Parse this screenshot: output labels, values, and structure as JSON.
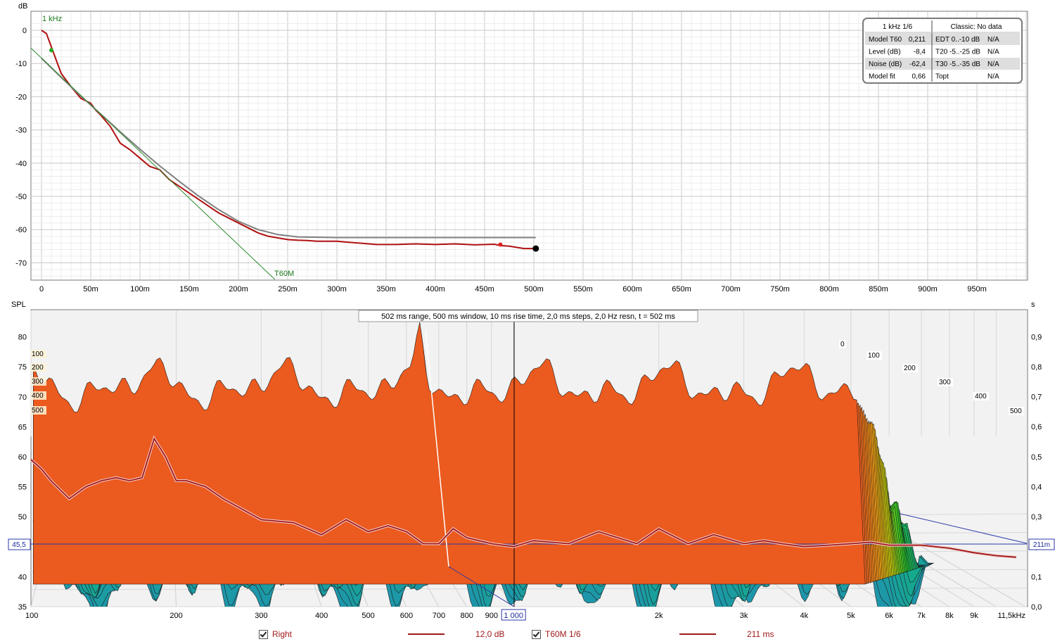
{
  "chart_data": [
    {
      "type": "line",
      "ylabel": "dB",
      "band_label": "1 kHz",
      "fit_label": "T60M",
      "x_unit": "ms",
      "xlim": [
        0,
        1000
      ],
      "ylim": [
        -75,
        3
      ],
      "x_ticks": [
        "0",
        "50m",
        "100m",
        "150m",
        "200m",
        "250m",
        "300m",
        "350m",
        "400m",
        "450m",
        "500m",
        "550m",
        "600m",
        "650m",
        "700m",
        "750m",
        "800m",
        "850m",
        "900m",
        "950m"
      ],
      "y_ticks": [
        "0",
        "-10",
        "-20",
        "-30",
        "-40",
        "-50",
        "-60",
        "-70"
      ],
      "series": [
        {
          "kind": "measured",
          "color": "#b01010",
          "x": [
            0,
            5,
            10,
            15,
            20,
            30,
            40,
            50,
            55,
            60,
            70,
            80,
            90,
            100,
            110,
            120,
            130,
            140,
            150,
            160,
            170,
            180,
            190,
            200,
            210,
            220,
            230,
            240,
            250,
            260,
            270,
            280,
            300,
            320,
            340,
            360,
            380,
            400,
            420,
            440,
            460,
            466,
            475,
            490,
            502
          ],
          "y": [
            0,
            -1,
            -5,
            -9,
            -13,
            -17,
            -20.5,
            -22,
            -24,
            -25.5,
            -29,
            -34,
            -36,
            -38.5,
            -41,
            -42,
            -45,
            -47,
            -49,
            -51,
            -53,
            -55,
            -56.5,
            -58,
            -59.5,
            -61,
            -62,
            -62.5,
            -63,
            -63.2,
            -63.3,
            -63.5,
            -63.5,
            -64,
            -64.5,
            -64.5,
            -64.3,
            -64.5,
            -64.3,
            -64.6,
            -64.4,
            -64.8,
            -65,
            -65.7,
            -65.7
          ]
        },
        {
          "kind": "model",
          "color": "#808080",
          "x": [
            0,
            20,
            40,
            60,
            80,
            100,
            120,
            140,
            160,
            180,
            200,
            220,
            240,
            260,
            300,
            400,
            502
          ],
          "y": [
            -8.4,
            -14.2,
            -19.8,
            -25.2,
            -30.6,
            -35.8,
            -40.8,
            -45.5,
            -50,
            -54,
            -57.5,
            -60,
            -61.5,
            -62.2,
            -62.4,
            -62.4,
            -62.4
          ]
        },
        {
          "kind": "decay_line",
          "color": "#2a8a2a",
          "x": [
            -12,
            237
          ],
          "y": [
            -5,
            -75
          ]
        }
      ],
      "markers": [
        {
          "x": 10,
          "y": -6,
          "color": "#22aa22"
        },
        {
          "x": 466,
          "y": -64.5,
          "color": "#e02020"
        },
        {
          "x": 502,
          "y": -65.7,
          "color": "#000000"
        }
      ],
      "info_table": {
        "header": [
          "1 kHz 1/6",
          "Classic: No data"
        ],
        "rows": [
          [
            "Model T60",
            "0,211",
            "EDT  0..-10 dB",
            "N/A"
          ],
          [
            "Level (dB)",
            "-8,4",
            "T20 -5..-25 dB",
            "N/A"
          ],
          [
            "Noise (dB)",
            "-62,4",
            "T30 -5..-35 dB",
            "N/A"
          ],
          [
            "Model fit",
            "0,66",
            "Topt",
            "N/A"
          ]
        ]
      }
    },
    {
      "type": "waterfall",
      "ylabel": "SPL",
      "right_label": "s",
      "title": "502 ms range, 500 ms window, 10 ms rise time, 2,0 ms steps,  2,0 Hz resn, t = 502 ms",
      "xscale": "log",
      "xlim": [
        100,
        11500
      ],
      "ylim": [
        35,
        82
      ],
      "x_ticks": [
        {
          "f": 100,
          "label": "100"
        },
        {
          "f": 200,
          "label": "200"
        },
        {
          "f": 300,
          "label": "300"
        },
        {
          "f": 400,
          "label": "400"
        },
        {
          "f": 500,
          "label": "500"
        },
        {
          "f": 600,
          "label": "600"
        },
        {
          "f": 700,
          "label": "700"
        },
        {
          "f": 800,
          "label": "800"
        },
        {
          "f": 900,
          "label": "900"
        },
        {
          "f": 1000,
          "label": "1 000"
        },
        {
          "f": 2000,
          "label": "2k"
        },
        {
          "f": 3000,
          "label": "3k"
        },
        {
          "f": 4000,
          "label": "4k"
        },
        {
          "f": 5000,
          "label": "5k"
        },
        {
          "f": 6000,
          "label": "6k"
        },
        {
          "f": 7000,
          "label": "7k"
        },
        {
          "f": 8000,
          "label": "8k"
        },
        {
          "f": 9000,
          "label": "9k"
        },
        {
          "f": 11500,
          "label": "11,5kHz"
        }
      ],
      "y_ticks": [
        "80",
        "75",
        "70",
        "65",
        "60",
        "55",
        "50",
        "40",
        "35"
      ],
      "right_ticks": [
        "0,9",
        "0,8",
        "0,7",
        "0,6",
        "0,5",
        "0,4",
        "0,3",
        "0,2",
        "0,1",
        "0,0"
      ],
      "time_tags_left": [
        "100",
        "200",
        "300",
        "400",
        "500"
      ],
      "time_tags_right": [
        "0",
        "100",
        "200",
        "300",
        "400",
        "500"
      ],
      "cursor_spl": "45,5",
      "cursor_time": "211m",
      "t60_series": {
        "name": "T60M 1/6",
        "freq": [
          100,
          105,
          110,
          120,
          130,
          140,
          150,
          160,
          170,
          180,
          190,
          200,
          210,
          230,
          250,
          300,
          350,
          400,
          450,
          500,
          550,
          600,
          650,
          700,
          750,
          800,
          900,
          1000,
          1100,
          1300,
          1500,
          1800,
          2000,
          2300,
          2600,
          3000,
          3300,
          3600,
          4000,
          4500,
          5000,
          5500,
          6000,
          7000,
          8000,
          9000,
          10000,
          11000
        ],
        "t60_s": [
          0.49,
          0.46,
          0.42,
          0.36,
          0.4,
          0.42,
          0.43,
          0.42,
          0.43,
          0.56,
          0.5,
          0.42,
          0.42,
          0.4,
          0.36,
          0.29,
          0.28,
          0.24,
          0.29,
          0.25,
          0.27,
          0.25,
          0.21,
          0.21,
          0.26,
          0.23,
          0.21,
          0.2,
          0.22,
          0.21,
          0.25,
          0.21,
          0.26,
          0.21,
          0.24,
          0.21,
          0.22,
          0.21,
          0.2,
          0.205,
          0.21,
          0.215,
          0.205,
          0.205,
          0.195,
          0.18,
          0.17,
          0.165
        ]
      }
    }
  ],
  "legend": {
    "item1": {
      "label": "Right",
      "value": "12,0 dB"
    },
    "item2": {
      "label": "T60M 1/6",
      "value": "211 ms"
    }
  }
}
